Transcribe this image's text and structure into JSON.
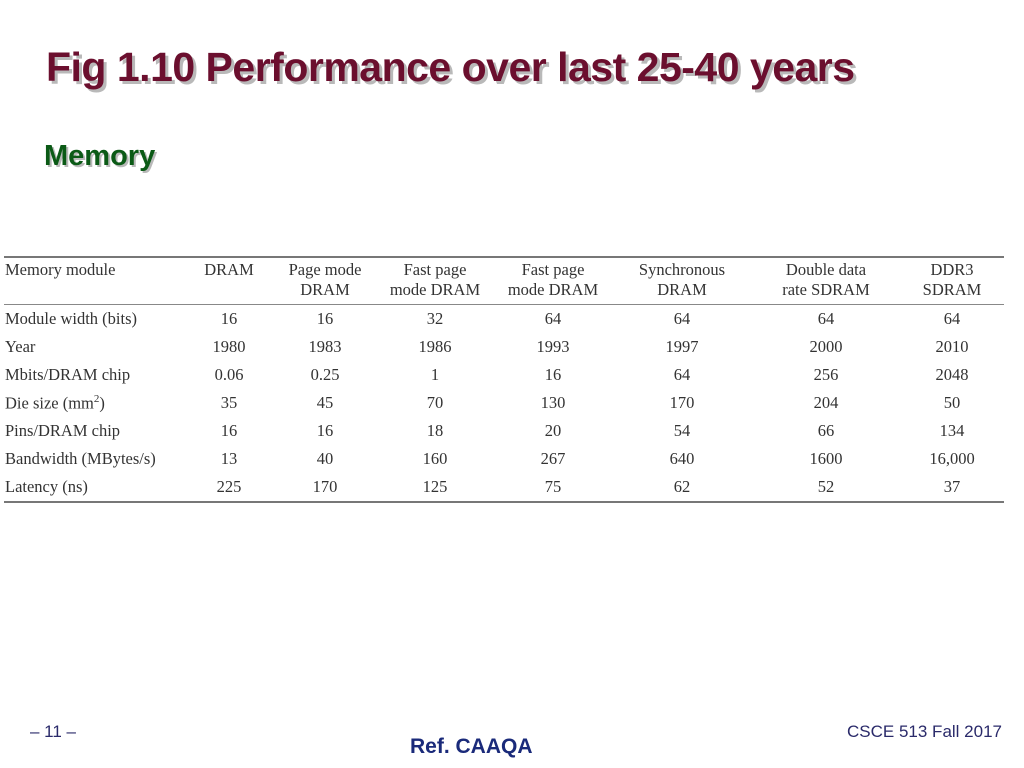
{
  "slide": {
    "title": "Fig 1.10 Performance over last 25-40 years",
    "subheading": "Memory"
  },
  "table": {
    "headers": [
      [
        "Memory module"
      ],
      [
        "DRAM"
      ],
      [
        "Page mode",
        "DRAM"
      ],
      [
        "Fast page",
        "mode DRAM"
      ],
      [
        "Fast page",
        "mode DRAM"
      ],
      [
        "Synchronous",
        "DRAM"
      ],
      [
        "Double data",
        "rate SDRAM"
      ],
      [
        "DDR3",
        "SDRAM"
      ]
    ],
    "rows": [
      {
        "label": "Module width (bits)",
        "values": [
          "16",
          "16",
          "32",
          "64",
          "64",
          "64",
          "64"
        ]
      },
      {
        "label": "Year",
        "values": [
          "1980",
          "1983",
          "1986",
          "1993",
          "1997",
          "2000",
          "2010"
        ]
      },
      {
        "label": "Mbits/DRAM chip",
        "values": [
          "0.06",
          "0.25",
          "1",
          "16",
          "64",
          "256",
          "2048"
        ]
      },
      {
        "label": "Die size (mm",
        "label_sup": "2",
        "label_after": ")",
        "values": [
          "35",
          "45",
          "70",
          "130",
          "170",
          "204",
          "50"
        ]
      },
      {
        "label": "Pins/DRAM chip",
        "values": [
          "16",
          "16",
          "18",
          "20",
          "54",
          "66",
          "134"
        ]
      },
      {
        "label": "Bandwidth (MBytes/s)",
        "values": [
          "13",
          "40",
          "160",
          "267",
          "640",
          "1600",
          "16,000"
        ]
      },
      {
        "label": "Latency (ns)",
        "values": [
          "225",
          "170",
          "125",
          "75",
          "62",
          "52",
          "37"
        ]
      }
    ]
  },
  "footer": {
    "page_number": "– 11 –",
    "reference": "Ref. CAAQA",
    "course": "CSCE 513 Fall 2017"
  }
}
